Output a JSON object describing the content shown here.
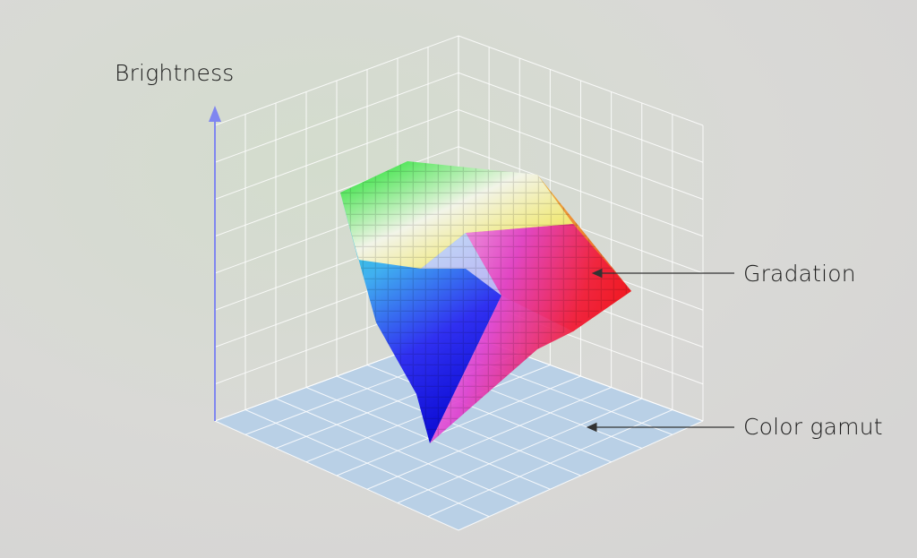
{
  "labels": {
    "brightness": "Brightness",
    "gradation": "Gradation",
    "color_gamut": "Color gamut"
  },
  "colors": {
    "axis": "#7f86f0",
    "floor": "#b9d0e6",
    "grid": "#ffffff",
    "text": "#1a1a1a"
  }
}
